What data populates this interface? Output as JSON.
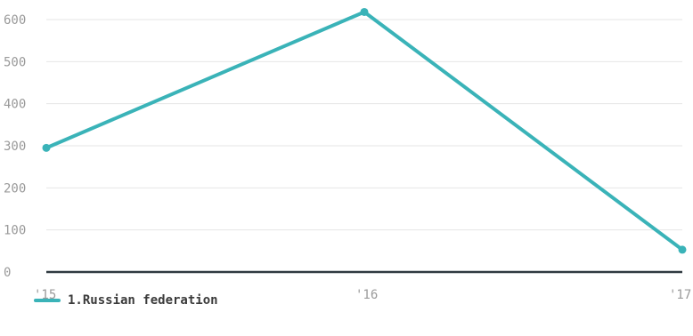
{
  "chart_data": {
    "type": "line",
    "categories": [
      "'15",
      "'16",
      "'17"
    ],
    "series": [
      {
        "name": "1.Russian federation",
        "values": [
          295,
          618,
          53
        ],
        "color": "#3ab3b8"
      }
    ],
    "yticks": [
      0,
      100,
      200,
      300,
      400,
      500,
      600
    ],
    "ylim": [
      0,
      630
    ],
    "grid": true,
    "legend_position": "bottom-left"
  },
  "colors": {
    "grid": "#e6e6e6",
    "baseline": "#2f3a40",
    "tick_text": "#9a9a9a"
  }
}
